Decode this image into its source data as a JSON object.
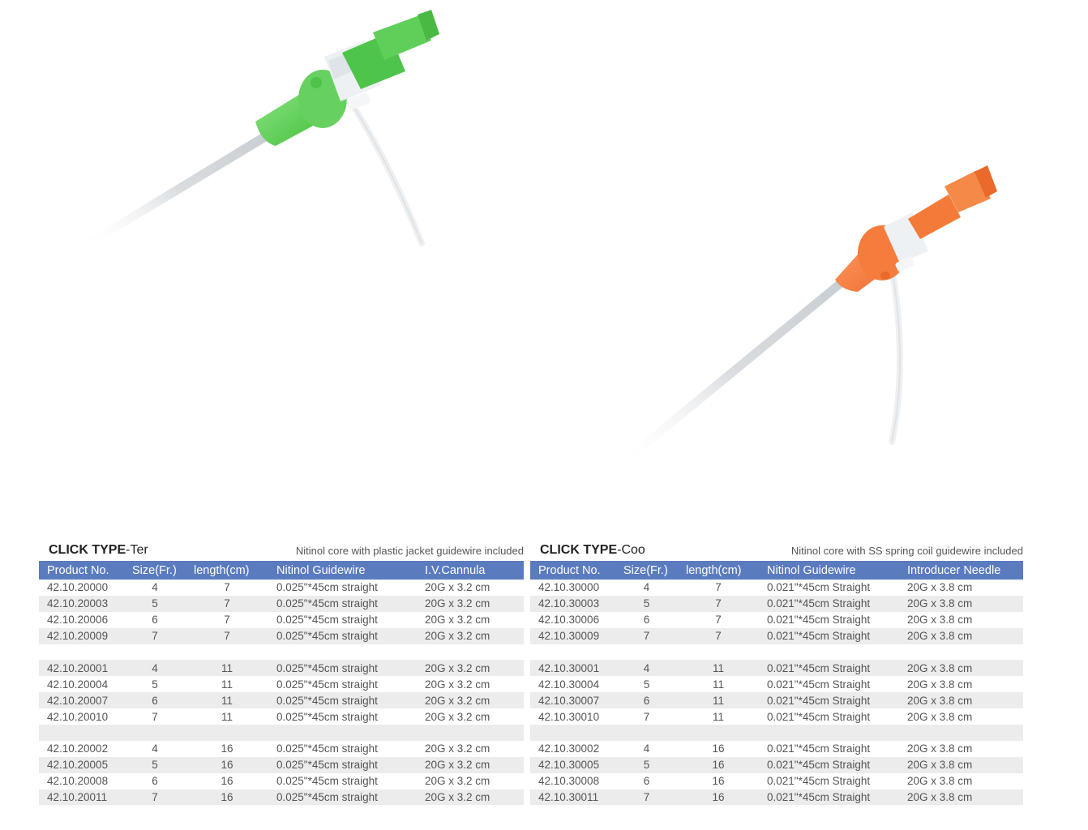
{
  "products": [
    {
      "id": "ter",
      "title_bold": "CLICK TYPE",
      "title_suffix": "-Ter",
      "subtitle": "Nitinol core with plastic jacket guidewire included",
      "columns": [
        "Product No.",
        "Size(Fr.)",
        "length(cm)",
        "Nitinol Guidewire",
        "I.V.Cannula"
      ],
      "rows": [
        [
          "42.10.20000",
          "4",
          "7",
          "0.025\"*45cm straight",
          "20G x 3.2 cm"
        ],
        [
          "42.10.20003",
          "5",
          "7",
          "0.025\"*45cm straight",
          "20G x 3.2 cm"
        ],
        [
          "42.10.20006",
          "6",
          "7",
          "0.025\"*45cm straight",
          "20G x 3.2 cm"
        ],
        [
          "42.10.20009",
          "7",
          "7",
          "0.025\"*45cm straight",
          "20G x 3.2 cm"
        ],
        null,
        [
          "42.10.20001",
          "4",
          "11",
          "0.025\"*45cm straight",
          "20G x 3.2 cm"
        ],
        [
          "42.10.20004",
          "5",
          "11",
          "0.025\"*45cm straight",
          "20G x 3.2 cm"
        ],
        [
          "42.10.20007",
          "6",
          "11",
          "0.025\"*45cm straight",
          "20G x 3.2 cm"
        ],
        [
          "42.10.20010",
          "7",
          "11",
          "0.025\"*45cm straight",
          "20G x 3.2 cm"
        ],
        null,
        [
          "42.10.20002",
          "4",
          "16",
          "0.025\"*45cm straight",
          "20G x 3.2 cm"
        ],
        [
          "42.10.20005",
          "5",
          "16",
          "0.025\"*45cm straight",
          "20G x 3.2 cm"
        ],
        [
          "42.10.20008",
          "6",
          "16",
          "0.025\"*45cm straight",
          "20G x 3.2 cm"
        ],
        [
          "42.10.20011",
          "7",
          "16",
          "0.025\"*45cm straight",
          "20G x 3.2 cm"
        ]
      ]
    },
    {
      "id": "coo",
      "title_bold": "CLICK TYPE",
      "title_suffix": "-Coo",
      "subtitle": "Nitinol core with SS spring coil guidewire included",
      "columns": [
        "Product No.",
        "Size(Fr.)",
        "length(cm)",
        "Nitinol Guidewire",
        "Introducer Needle"
      ],
      "rows": [
        [
          "42.10.30000",
          "4",
          "7",
          "0.021\"*45cm  Straight",
          "20G x 3.8 cm"
        ],
        [
          "42.10.30003",
          "5",
          "7",
          "0.021\"*45cm  Straight",
          "20G x 3.8 cm"
        ],
        [
          "42.10.30006",
          "6",
          "7",
          "0.021\"*45cm  Straight",
          "20G x 3.8 cm"
        ],
        [
          "42.10.30009",
          "7",
          "7",
          "0.021\"*45cm  Straight",
          "20G x 3.8 cm"
        ],
        null,
        [
          "42.10.30001",
          "4",
          "11",
          "0.021\"*45cm  Straight",
          "20G x 3.8 cm"
        ],
        [
          "42.10.30004",
          "5",
          "11",
          "0.021\"*45cm  Straight",
          "20G x 3.8 cm"
        ],
        [
          "42.10.30007",
          "6",
          "11",
          "0.021\"*45cm  Straight",
          "20G x 3.8 cm"
        ],
        [
          "42.10.30010",
          "7",
          "11",
          "0.021\"*45cm  Straight",
          "20G x 3.8 cm"
        ],
        null,
        [
          "42.10.30002",
          "4",
          "16",
          "0.021\"*45cm  Straight",
          "20G x 3.8 cm"
        ],
        [
          "42.10.30005",
          "5",
          "16",
          "0.021\"*45cm  Straight",
          "20G x 3.8 cm"
        ],
        [
          "42.10.30008",
          "6",
          "16",
          "0.021\"*45cm  Straight",
          "20G x 3.8 cm"
        ],
        [
          "42.10.30011",
          "7",
          "16",
          "0.021\"*45cm  Straight",
          "20G x 3.8 cm"
        ]
      ]
    }
  ],
  "colors": {
    "header_bg": "#5b7bbf",
    "row_shade": "#ececec",
    "ter_hub": "#5fcf5a",
    "coo_hub": "#f47a3a"
  }
}
